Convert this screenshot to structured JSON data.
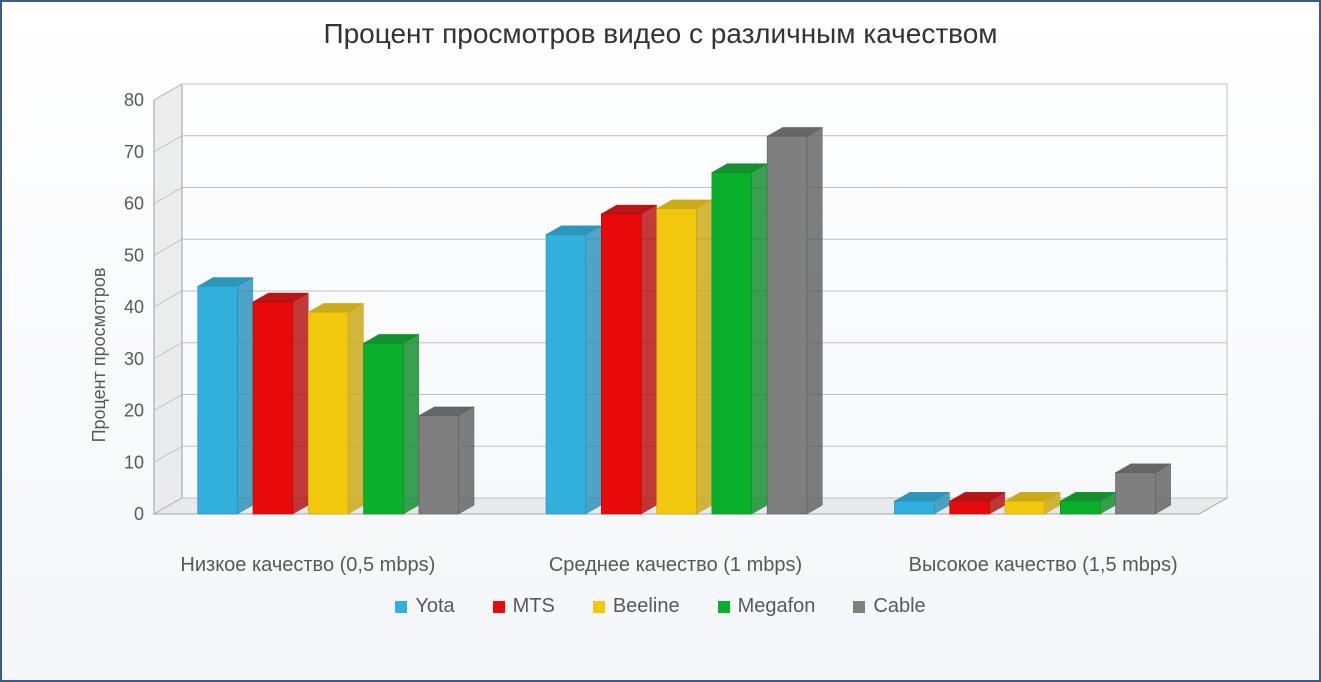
{
  "chart": {
    "type": "bar-3d-grouped",
    "title": "Процент просмотров видео с различным качеством",
    "y_axis_label": "Процент просмотров",
    "categories": [
      "Низкое качество (0,5 mbps)",
      "Среднее качество (1 mbps)",
      "Высокое качество (1,5 mbps)"
    ],
    "series": [
      {
        "name": "Yota",
        "color": "#31afdd",
        "dark": "#238fb7",
        "values": [
          44,
          54,
          2.5
        ]
      },
      {
        "name": "MTS",
        "color": "#e80a0a",
        "dark": "#b50808",
        "values": [
          41,
          58,
          2.5
        ]
      },
      {
        "name": "Beeline",
        "color": "#f2c80f",
        "dark": "#c9a60c",
        "values": [
          39,
          59,
          2.5
        ]
      },
      {
        "name": "Megafon",
        "color": "#0ab02c",
        "dark": "#088a23",
        "values": [
          33,
          66,
          2.5
        ]
      },
      {
        "name": "Cable",
        "color": "#7f7f7f",
        "dark": "#5e5e5e",
        "values": [
          19,
          73,
          8
        ]
      }
    ],
    "y_ticks": [
      0,
      10,
      20,
      30,
      40,
      50,
      60,
      70,
      80
    ],
    "ylim": [
      0,
      80
    ],
    "tick_font_size": 18,
    "tick_color": "#595959",
    "border_color": "#385d8a",
    "grid_color": "#bfbfbf",
    "wall_fill": "#d9d9d9",
    "wall_edge": "#9e9e9e",
    "floor_fill": "#d9d9d9",
    "floor_edge": "#a6a6a6",
    "title_fontsize": 28,
    "label_fontsize": 18,
    "category_fontsize": 20,
    "legend_fontsize": 20,
    "background": "#ffffff",
    "bar_width_ratio": 0.72,
    "group_gap_ratio": 1.3,
    "bar_gap_ratio": 0.05,
    "depth": 28,
    "y_offset": 16
  }
}
